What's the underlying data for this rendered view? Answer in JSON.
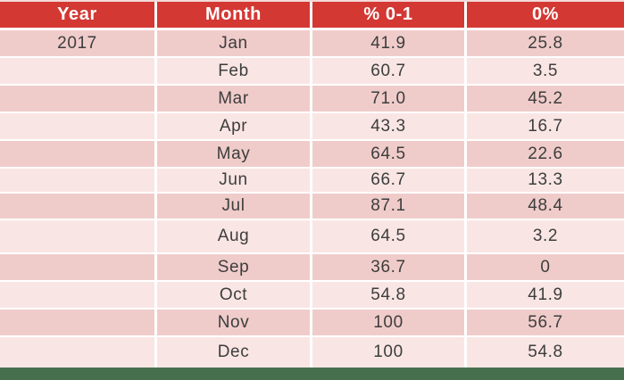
{
  "colors": {
    "header_red": "#d33833",
    "row_dark_pink": "#efccca",
    "row_light_pink": "#f9e6e4",
    "gridline_white": "#ffffff",
    "bottom_bar_green": "#46704d",
    "body_text": "#3d3d3d",
    "header_text": "#ffffff"
  },
  "table": {
    "columns": [
      {
        "label": "Year"
      },
      {
        "label": "Month"
      },
      {
        "label": "% 0-1"
      },
      {
        "label": "0%"
      }
    ],
    "rows": [
      {
        "year": "2017",
        "month": "Jan",
        "pct_0_1": "41.9",
        "pct_0": "25.8"
      },
      {
        "year": "",
        "month": "Feb",
        "pct_0_1": "60.7",
        "pct_0": "3.5"
      },
      {
        "year": "",
        "month": "Mar",
        "pct_0_1": "71.0",
        "pct_0": "45.2"
      },
      {
        "year": "",
        "month": "Apr",
        "pct_0_1": "43.3",
        "pct_0": "16.7"
      },
      {
        "year": "",
        "month": "May",
        "pct_0_1": "64.5",
        "pct_0": "22.6"
      },
      {
        "year": "",
        "month": "Jun",
        "pct_0_1": "66.7",
        "pct_0": "13.3"
      },
      {
        "year": "",
        "month": "Jul",
        "pct_0_1": "87.1",
        "pct_0": "48.4"
      },
      {
        "year": "",
        "month": "Aug",
        "pct_0_1": "64.5",
        "pct_0": "3.2"
      },
      {
        "year": "",
        "month": "Sep",
        "pct_0_1": "36.7",
        "pct_0": "0"
      },
      {
        "year": "",
        "month": "Oct",
        "pct_0_1": "54.8",
        "pct_0": "41.9"
      },
      {
        "year": "",
        "month": "Nov",
        "pct_0_1": "100",
        "pct_0": "56.7"
      },
      {
        "year": "",
        "month": "Dec",
        "pct_0_1": "100",
        "pct_0": "54.8"
      }
    ]
  }
}
